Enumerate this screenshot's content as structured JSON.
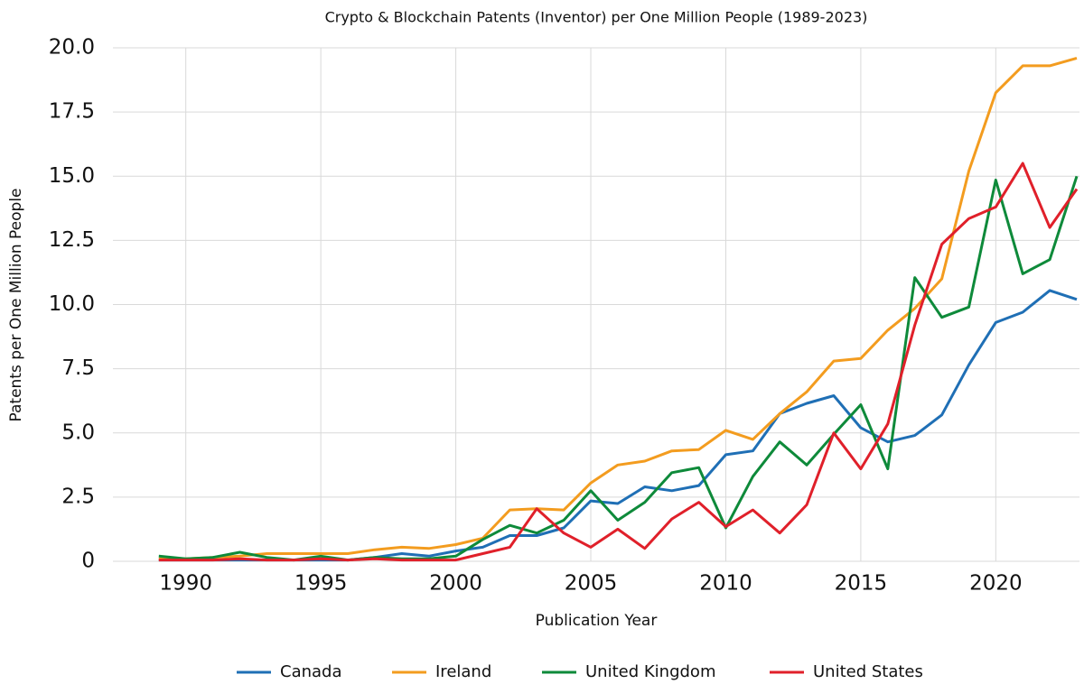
{
  "chart_data": {
    "type": "line",
    "title": "Crypto & Blockchain Patents (Inventor) per One Million People (1989-2023)",
    "x_label": "Publication Year",
    "y_label": "Patents per One Million People",
    "x": [
      1989,
      1990,
      1991,
      1992,
      1993,
      1994,
      1995,
      1996,
      1997,
      1998,
      1999,
      2000,
      2001,
      2002,
      2003,
      2004,
      2005,
      2006,
      2007,
      2008,
      2009,
      2010,
      2011,
      2012,
      2013,
      2014,
      2015,
      2016,
      2017,
      2018,
      2019,
      2020,
      2021,
      2022,
      2023
    ],
    "series": [
      {
        "name": "Canada",
        "color": "#1f6fb5",
        "values": [
          0.05,
          0.05,
          0.05,
          0.05,
          0.05,
          0.05,
          0.05,
          0.05,
          0.15,
          0.3,
          0.2,
          0.4,
          0.55,
          1.0,
          1.0,
          1.3,
          2.35,
          2.25,
          2.9,
          2.75,
          2.95,
          4.15,
          4.3,
          5.75,
          6.15,
          6.45,
          5.2,
          4.65,
          4.9,
          5.7,
          7.65,
          9.3,
          9.7,
          10.55,
          10.2
        ]
      },
      {
        "name": "Ireland",
        "color": "#f39c1f",
        "values": [
          0.1,
          0.1,
          0.15,
          0.2,
          0.3,
          0.3,
          0.3,
          0.3,
          0.45,
          0.55,
          0.5,
          0.65,
          0.9,
          2.0,
          2.05,
          2.0,
          3.05,
          3.75,
          3.9,
          4.3,
          4.35,
          5.1,
          4.75,
          5.75,
          6.6,
          7.8,
          7.9,
          9.0,
          9.85,
          11.0,
          15.2,
          18.25,
          19.3,
          19.3,
          19.6
        ]
      },
      {
        "name": "United Kingdom",
        "color": "#0e8a3a",
        "values": [
          0.2,
          0.1,
          0.15,
          0.35,
          0.15,
          0.05,
          0.2,
          0.05,
          0.15,
          0.1,
          0.1,
          0.2,
          0.85,
          1.4,
          1.1,
          1.6,
          2.75,
          1.6,
          2.3,
          3.45,
          3.65,
          1.3,
          3.3,
          4.65,
          3.75,
          4.95,
          6.1,
          3.6,
          11.05,
          9.5,
          9.9,
          14.85,
          11.2,
          11.75,
          15.0
        ]
      },
      {
        "name": "United States",
        "color": "#e0202a",
        "values": [
          0.05,
          0.05,
          0.05,
          0.1,
          0.05,
          0.05,
          0.1,
          0.05,
          0.1,
          0.05,
          0.05,
          0.05,
          0.3,
          0.55,
          2.05,
          1.1,
          0.55,
          1.25,
          0.5,
          1.65,
          2.3,
          1.35,
          2.0,
          1.1,
          2.2,
          5.0,
          3.6,
          5.35,
          9.2,
          12.35,
          13.35,
          13.8,
          15.5,
          13.0,
          14.5
        ]
      }
    ],
    "xlim": [
      1987.3,
      2023.1
    ],
    "xticks": [
      1990,
      1995,
      2000,
      2005,
      2010,
      2015,
      2020
    ],
    "ylim": [
      0,
      20
    ],
    "yticks": [
      0,
      2.5,
      {
        "value": 5,
        "label": "5.0"
      },
      7.5,
      {
        "value": 10,
        "label": "10.0"
      },
      12.5,
      {
        "value": 15,
        "label": "15.0"
      },
      17.5,
      {
        "value": 20,
        "label": "20.0"
      }
    ],
    "grid": true,
    "legend": "bottom"
  }
}
